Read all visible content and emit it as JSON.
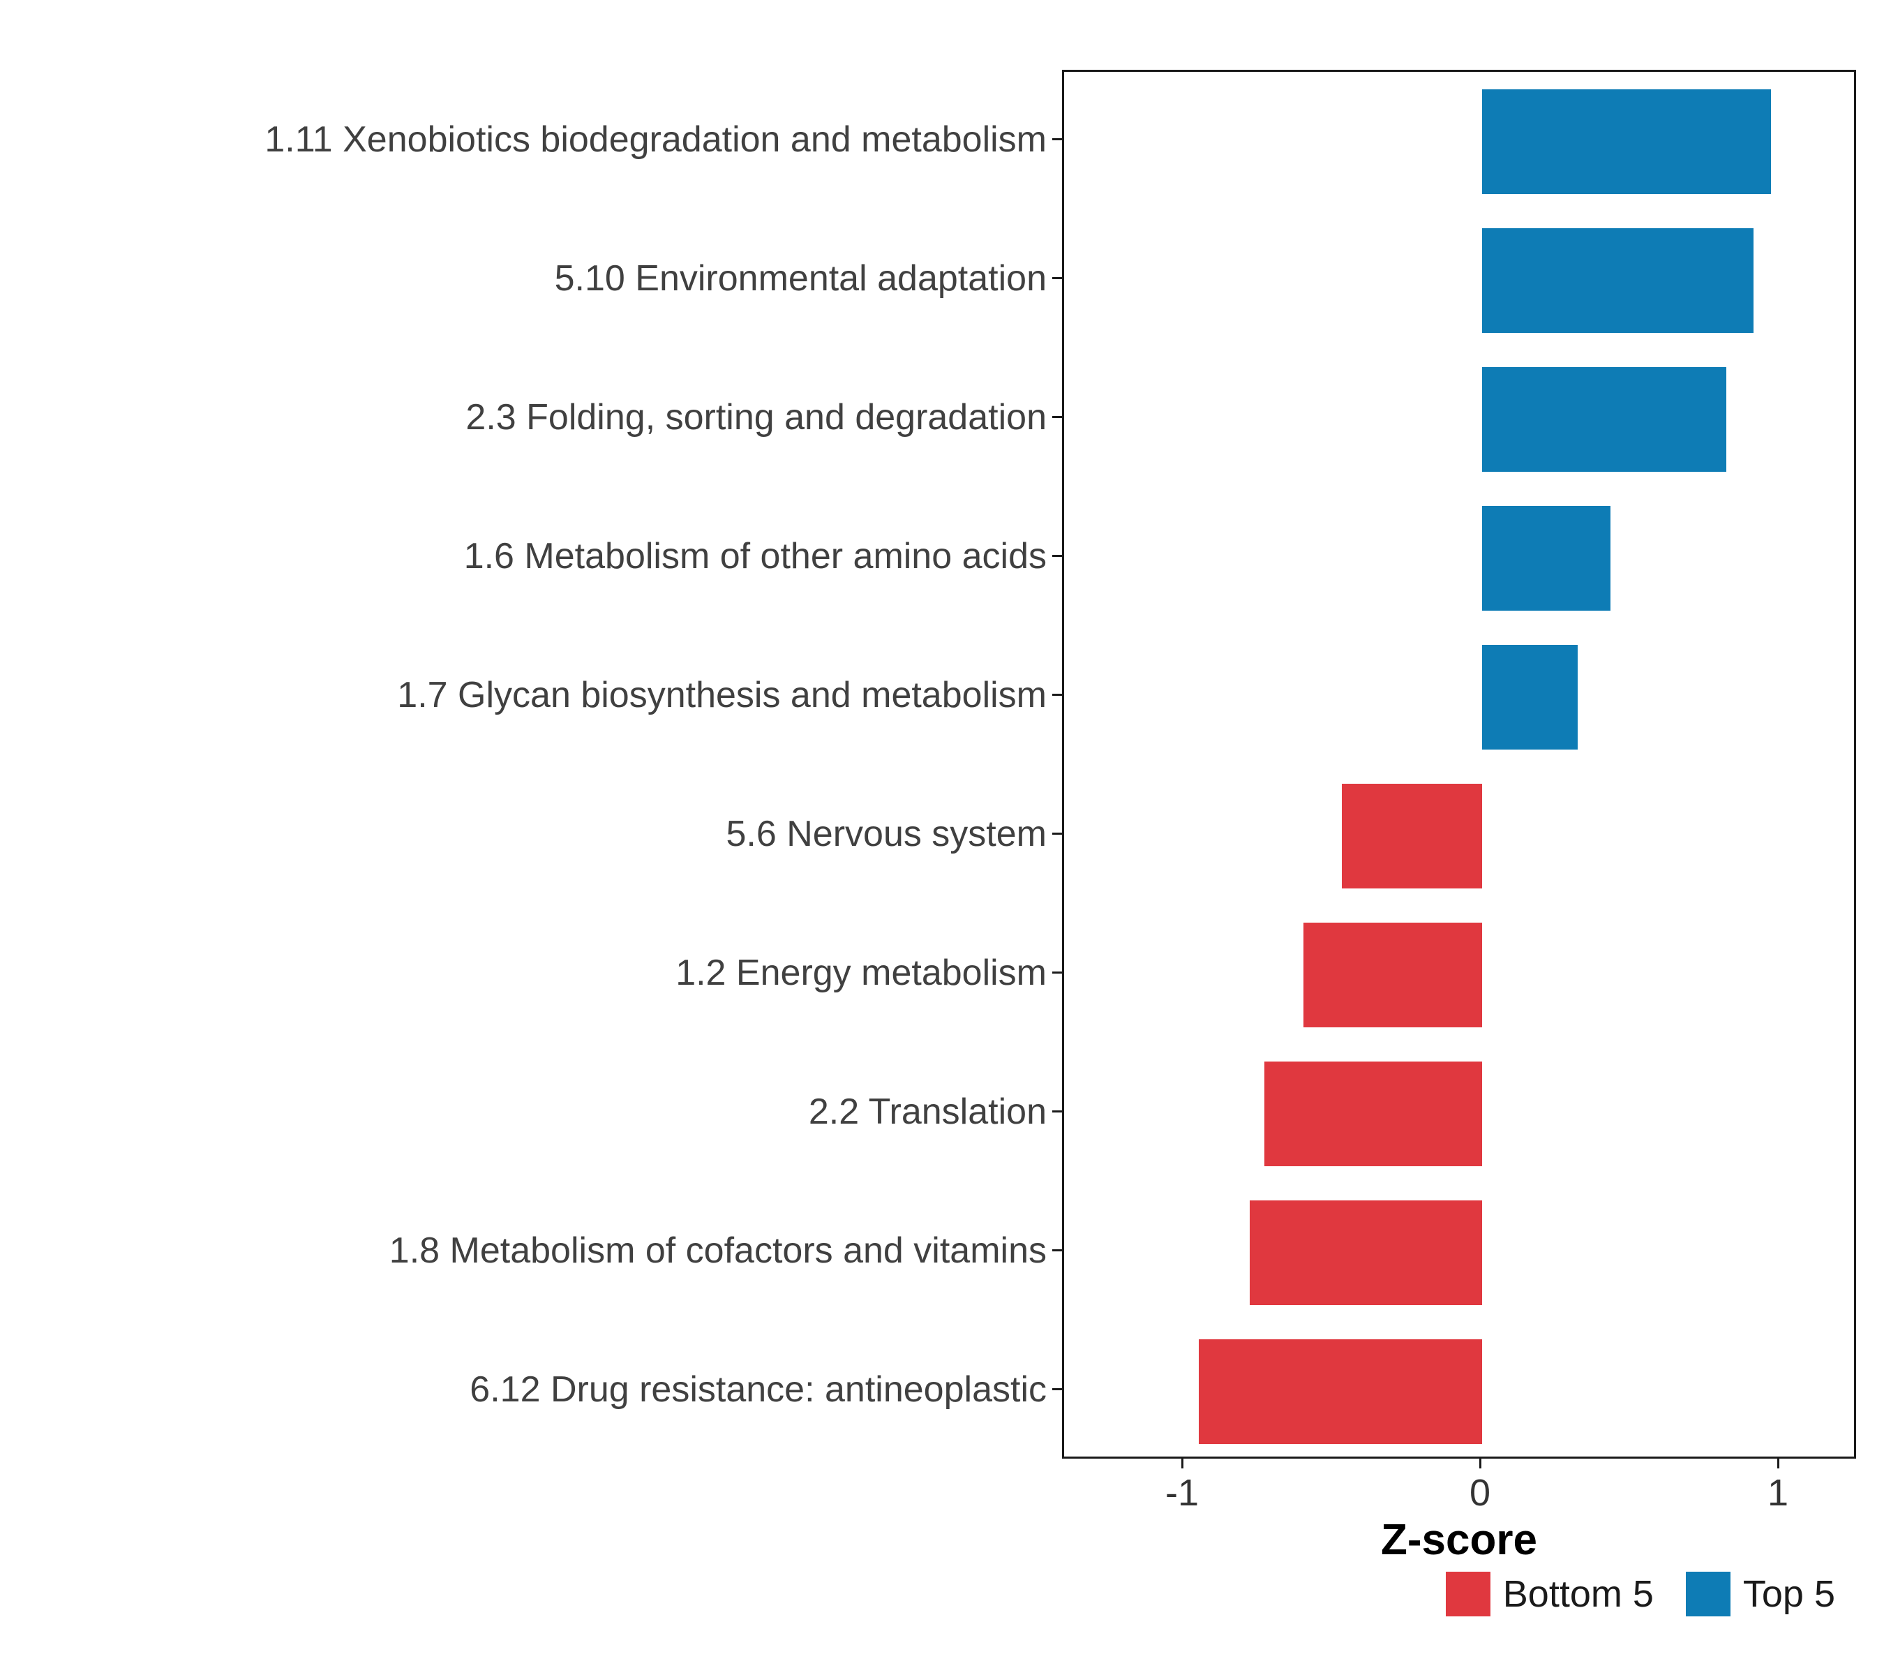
{
  "chart_data": {
    "type": "bar",
    "orientation": "horizontal",
    "title": "",
    "xlabel": "Z-score",
    "ylabel": "",
    "xlim": [
      -1.4,
      1.26
    ],
    "x_ticks": [
      -1,
      0,
      1
    ],
    "x_tick_labels": [
      "-1",
      "0",
      "1"
    ],
    "grid": false,
    "legend_position": "bottom-right",
    "categories": [
      "1.11 Xenobiotics biodegradation and metabolism",
      "5.10 Environmental adaptation",
      "2.3 Folding, sorting and degradation",
      "1.6 Metabolism of other amino acids",
      "1.7 Glycan biosynthesis and metabolism",
      "5.6 Nervous system",
      "1.2 Energy metabolism",
      "2.2 Translation",
      "1.8 Metabolism of cofactors and vitamins",
      "6.12 Drug resistance: antineoplastic"
    ],
    "values": [
      0.97,
      0.91,
      0.82,
      0.43,
      0.32,
      -0.47,
      -0.6,
      -0.73,
      -0.78,
      -0.95
    ],
    "groups": [
      "Top 5",
      "Top 5",
      "Top 5",
      "Top 5",
      "Top 5",
      "Bottom 5",
      "Bottom 5",
      "Bottom 5",
      "Bottom 5",
      "Bottom 5"
    ],
    "legend": [
      {
        "label": "Bottom 5",
        "color": "#E0383F"
      },
      {
        "label": "Top 5",
        "color": "#0E7CB5"
      }
    ]
  }
}
